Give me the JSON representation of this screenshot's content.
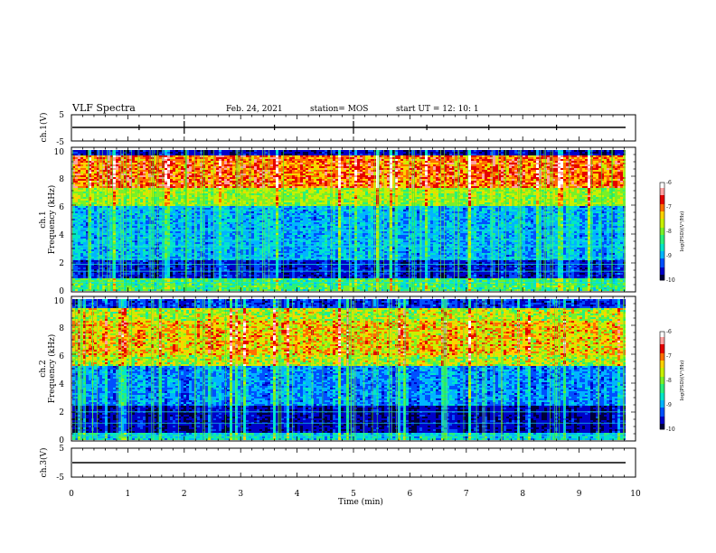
{
  "header": {
    "title": "VLF Spectra",
    "date": "Feb. 24, 2021",
    "station": "station= MOS",
    "start": "start  UT =   12: 10: 1"
  },
  "colors": {
    "colormap": [
      "#00003a",
      "#0000c8",
      "#0050ff",
      "#00b4ff",
      "#00e6c8",
      "#28f07a",
      "#78f028",
      "#c8f000",
      "#ffd200",
      "#ff6e00",
      "#e60000",
      "#ffa0a0",
      "#ffffff"
    ]
  },
  "chart_data": [
    {
      "type": "line",
      "panel": "ch1-waveform",
      "ylabel": "ch.1(V)",
      "ylim": [
        -5,
        5
      ],
      "yticks": [
        "5",
        "-5"
      ],
      "series": [
        {
          "values": [
            0
          ]
        }
      ]
    },
    {
      "type": "heatmap",
      "panel": "ch1-spectrogram",
      "ylabel": "Frequency (kHz)",
      "ylabel2": "ch.1",
      "ylim": [
        0,
        10
      ],
      "yticks": [
        "0",
        "2",
        "4",
        "6",
        "8",
        "10"
      ],
      "colorbar": {
        "label": "log(PSD)(V²/Hz)",
        "range": [
          -10,
          -6
        ],
        "ticks": [
          "-6",
          "-7",
          "-8",
          "-9",
          "-10"
        ]
      }
    },
    {
      "type": "heatmap",
      "panel": "ch2-spectrogram",
      "ylabel": "Frequency (kHz)",
      "ylabel2": "ch.2",
      "ylim": [
        0,
        10
      ],
      "yticks": [
        "0",
        "2",
        "4",
        "6",
        "8",
        "10"
      ],
      "colorbar": {
        "label": "log(PSD)(V²/Hz)",
        "range": [
          -10,
          -6
        ],
        "ticks": [
          "-6",
          "-7",
          "-8",
          "-9",
          "-10"
        ]
      }
    },
    {
      "type": "line",
      "panel": "ch3-waveform",
      "ylabel": "ch.3(V)",
      "ylim": [
        -5,
        5
      ],
      "yticks": [
        "5",
        "-5"
      ],
      "series": [
        {
          "values": [
            0
          ]
        }
      ]
    }
  ],
  "xaxis": {
    "label": "Time  (min)",
    "xlim": [
      0,
      10
    ],
    "ticks": [
      "0",
      "1",
      "2",
      "3",
      "4",
      "5",
      "6",
      "7",
      "8",
      "9",
      "10"
    ]
  }
}
